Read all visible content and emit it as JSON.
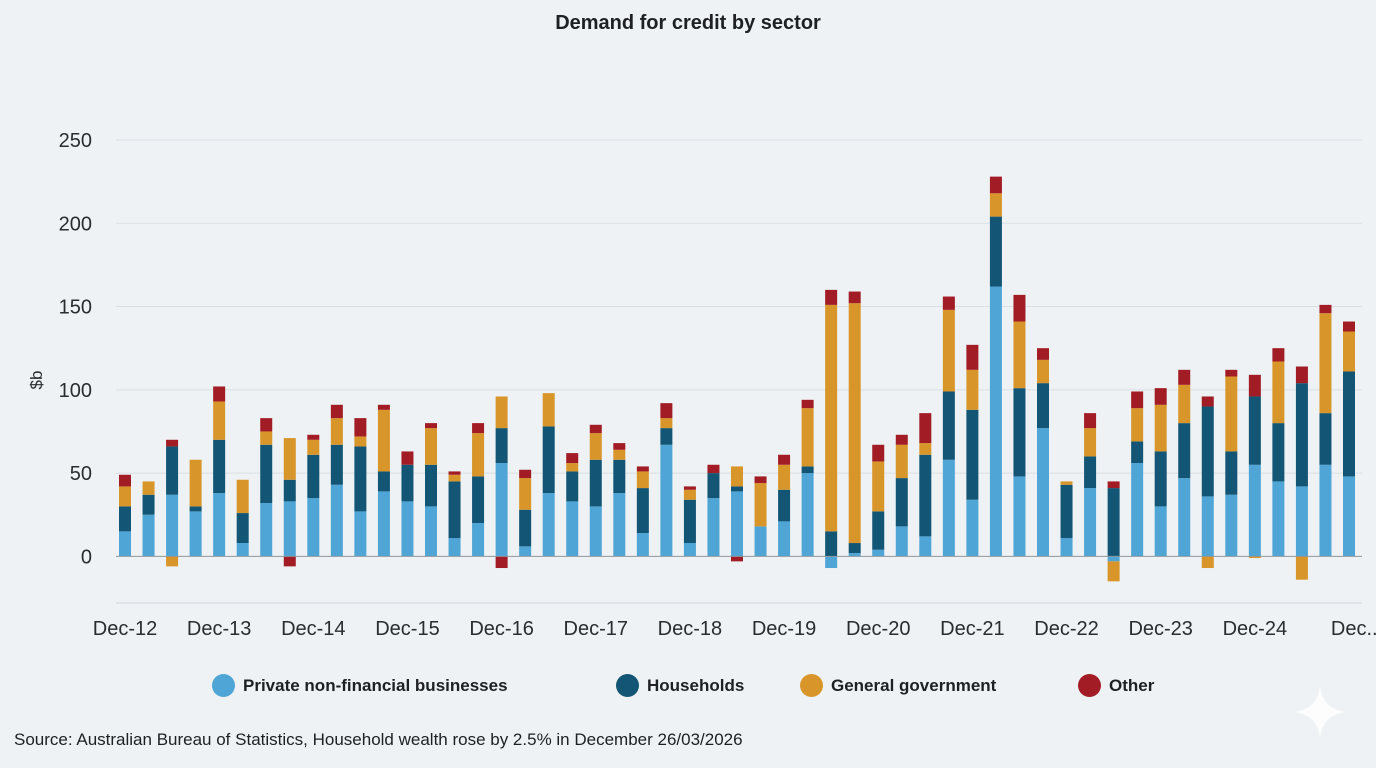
{
  "chart_data": {
    "type": "bar",
    "stacked": true,
    "title": "Demand for credit by sector",
    "xlabel": "",
    "ylabel": "$b",
    "ylim": [
      -28,
      262
    ],
    "yticks": [
      0,
      50,
      100,
      150,
      200,
      250
    ],
    "grid": true,
    "legend_position": "bottom",
    "tick_labels": [
      "Dec-12",
      "Dec-13",
      "Dec-14",
      "Dec-15",
      "Dec-16",
      "Dec-17",
      "Dec-18",
      "Dec-19",
      "Dec-20",
      "Dec-21",
      "Dec-22",
      "Dec-23",
      "Dec-24",
      "Dec..."
    ],
    "categories": [
      "Dec-12",
      "Mar-13",
      "Jun-13",
      "Sep-13",
      "Dec-13",
      "Mar-14",
      "Jun-14",
      "Sep-14",
      "Dec-14",
      "Mar-15",
      "Jun-15",
      "Sep-15",
      "Dec-15",
      "Mar-16",
      "Jun-16",
      "Sep-16",
      "Dec-16",
      "Mar-17",
      "Jun-17",
      "Sep-17",
      "Dec-17",
      "Mar-18",
      "Jun-18",
      "Sep-18",
      "Dec-18",
      "Mar-19",
      "Jun-19",
      "Sep-19",
      "Dec-19",
      "Mar-20",
      "Jun-20",
      "Sep-20",
      "Dec-20",
      "Mar-21",
      "Jun-21",
      "Sep-21",
      "Dec-21",
      "Mar-22",
      "Jun-22",
      "Sep-22",
      "Dec-22",
      "Mar-23",
      "Jun-23",
      "Sep-23",
      "Dec-23",
      "Mar-24",
      "Jun-24",
      "Sep-24",
      "Dec-24",
      "Mar-25",
      "Jun-25",
      "Sep-25",
      "Dec-25"
    ],
    "series": [
      {
        "name": "Private non-financial businesses",
        "color": "#4ea5d6",
        "values": [
          15,
          25,
          37,
          27,
          38,
          8,
          32,
          33,
          35,
          43,
          27,
          39,
          33,
          30,
          11,
          20,
          56,
          6,
          38,
          33,
          30,
          38,
          14,
          67,
          8,
          35,
          39,
          18,
          21,
          50,
          -7,
          2,
          4,
          18,
          12,
          58,
          34,
          162,
          48,
          77,
          11,
          41,
          -3,
          56,
          30,
          47,
          36,
          37,
          55,
          45,
          42,
          55,
          48
        ]
      },
      {
        "name": "Households",
        "color": "#135574",
        "values": [
          15,
          12,
          29,
          3,
          32,
          18,
          35,
          13,
          26,
          24,
          39,
          12,
          22,
          25,
          34,
          28,
          21,
          22,
          40,
          18,
          28,
          20,
          27,
          10,
          26,
          15,
          3,
          0,
          19,
          4,
          15,
          6,
          23,
          29,
          49,
          41,
          54,
          42,
          53,
          27,
          32,
          19,
          41,
          13,
          33,
          33,
          54,
          26,
          41,
          35,
          62,
          31,
          63
        ]
      },
      {
        "name": "General government",
        "color": "#d8962a",
        "values": [
          12,
          8,
          -6,
          28,
          23,
          20,
          8,
          25,
          9,
          16,
          6,
          37,
          0,
          22,
          4,
          26,
          19,
          19,
          20,
          5,
          16,
          6,
          10,
          6,
          6,
          0,
          12,
          26,
          15,
          35,
          136,
          144,
          30,
          20,
          7,
          49,
          24,
          14,
          40,
          14,
          2,
          17,
          -12,
          20,
          28,
          23,
          -7,
          45,
          -1,
          37,
          -14,
          60,
          24
        ]
      },
      {
        "name": "Other",
        "color": "#a11c24",
        "values": [
          7,
          0,
          4,
          0,
          9,
          0,
          8,
          -6,
          3,
          8,
          11,
          3,
          8,
          3,
          2,
          6,
          -7,
          5,
          0,
          6,
          5,
          4,
          3,
          9,
          2,
          5,
          -3,
          4,
          6,
          5,
          9,
          7,
          10,
          6,
          18,
          8,
          15,
          10,
          16,
          7,
          0,
          9,
          4,
          10,
          10,
          9,
          6,
          4,
          13,
          8,
          10,
          5,
          6
        ]
      }
    ]
  },
  "source_note": "Source: Australian Bureau of Statistics, Household wealth rose by 2.5% in December 26/03/2026",
  "watermark_icon": "sparkle-icon"
}
